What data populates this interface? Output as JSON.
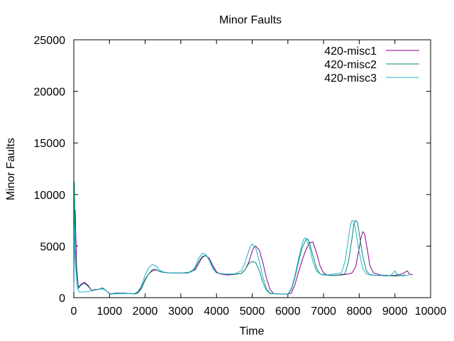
{
  "chart_data": {
    "type": "line",
    "title": "Minor Faults",
    "xlabel": "Time",
    "ylabel": "Minor Faults",
    "xlim": [
      0,
      10000
    ],
    "ylim": [
      0,
      25000
    ],
    "xticks": [
      0,
      1000,
      2000,
      3000,
      4000,
      5000,
      6000,
      7000,
      8000,
      9000,
      10000
    ],
    "yticks": [
      0,
      5000,
      10000,
      15000,
      20000,
      25000
    ],
    "grid": false,
    "legend_position": "top-right",
    "series": [
      {
        "name": "420-misc1",
        "color": "#8b008b",
        "points": [
          [
            0,
            800
          ],
          [
            40,
            8500
          ],
          [
            80,
            3000
          ],
          [
            130,
            1000
          ],
          [
            200,
            1300
          ],
          [
            300,
            1500
          ],
          [
            400,
            1200
          ],
          [
            500,
            700
          ],
          [
            600,
            800
          ],
          [
            700,
            800
          ],
          [
            800,
            950
          ],
          [
            900,
            700
          ],
          [
            1000,
            400
          ],
          [
            1100,
            400
          ],
          [
            1200,
            450
          ],
          [
            1400,
            450
          ],
          [
            1600,
            400
          ],
          [
            1700,
            350
          ],
          [
            1800,
            500
          ],
          [
            1900,
            1000
          ],
          [
            2000,
            1800
          ],
          [
            2100,
            2300
          ],
          [
            2200,
            2600
          ],
          [
            2300,
            2700
          ],
          [
            2400,
            2550
          ],
          [
            2500,
            2450
          ],
          [
            2700,
            2400
          ],
          [
            3000,
            2400
          ],
          [
            3200,
            2400
          ],
          [
            3400,
            2700
          ],
          [
            3500,
            3300
          ],
          [
            3600,
            3900
          ],
          [
            3700,
            4100
          ],
          [
            3800,
            3800
          ],
          [
            3900,
            3100
          ],
          [
            4000,
            2500
          ],
          [
            4100,
            2300
          ],
          [
            4300,
            2200
          ],
          [
            4500,
            2250
          ],
          [
            4700,
            2350
          ],
          [
            4800,
            2700
          ],
          [
            4900,
            3400
          ],
          [
            5000,
            4500
          ],
          [
            5050,
            4900
          ],
          [
            5100,
            5000
          ],
          [
            5200,
            4600
          ],
          [
            5300,
            3400
          ],
          [
            5400,
            1900
          ],
          [
            5500,
            800
          ],
          [
            5600,
            400
          ],
          [
            5800,
            350
          ],
          [
            6000,
            350
          ],
          [
            6100,
            450
          ],
          [
            6200,
            1300
          ],
          [
            6300,
            2500
          ],
          [
            6400,
            3600
          ],
          [
            6500,
            4600
          ],
          [
            6600,
            5300
          ],
          [
            6700,
            5400
          ],
          [
            6800,
            4400
          ],
          [
            6900,
            3100
          ],
          [
            7000,
            2400
          ],
          [
            7100,
            2200
          ],
          [
            7300,
            2150
          ],
          [
            7500,
            2200
          ],
          [
            7700,
            2300
          ],
          [
            7800,
            2400
          ],
          [
            7900,
            3000
          ],
          [
            8000,
            4800
          ],
          [
            8050,
            5800
          ],
          [
            8100,
            6400
          ],
          [
            8150,
            6200
          ],
          [
            8200,
            5200
          ],
          [
            8300,
            3100
          ],
          [
            8400,
            2400
          ],
          [
            8600,
            2200
          ],
          [
            8800,
            2150
          ],
          [
            9000,
            2150
          ],
          [
            9200,
            2300
          ],
          [
            9300,
            2500
          ],
          [
            9350,
            2600
          ],
          [
            9400,
            2300
          ],
          [
            9500,
            2200
          ]
        ]
      },
      {
        "name": "420-misc2",
        "color": "#008b6e",
        "points": [
          [
            0,
            1200
          ],
          [
            15,
            11200
          ],
          [
            40,
            5000
          ],
          [
            80,
            2500
          ],
          [
            130,
            900
          ],
          [
            200,
            1200
          ],
          [
            300,
            1400
          ],
          [
            400,
            1100
          ],
          [
            500,
            700
          ],
          [
            600,
            750
          ],
          [
            700,
            800
          ],
          [
            800,
            950
          ],
          [
            900,
            700
          ],
          [
            1000,
            350
          ],
          [
            1100,
            400
          ],
          [
            1300,
            450
          ],
          [
            1600,
            400
          ],
          [
            1700,
            350
          ],
          [
            1800,
            450
          ],
          [
            1900,
            900
          ],
          [
            2000,
            1700
          ],
          [
            2100,
            2300
          ],
          [
            2200,
            2700
          ],
          [
            2300,
            2750
          ],
          [
            2400,
            2550
          ],
          [
            2500,
            2450
          ],
          [
            2700,
            2400
          ],
          [
            3000,
            2400
          ],
          [
            3200,
            2400
          ],
          [
            3400,
            2800
          ],
          [
            3500,
            3500
          ],
          [
            3600,
            4000
          ],
          [
            3700,
            4100
          ],
          [
            3800,
            3700
          ],
          [
            3900,
            2900
          ],
          [
            4000,
            2400
          ],
          [
            4200,
            2300
          ],
          [
            4500,
            2250
          ],
          [
            4700,
            2350
          ],
          [
            4800,
            2700
          ],
          [
            4900,
            3300
          ],
          [
            5000,
            3500
          ],
          [
            5100,
            3400
          ],
          [
            5200,
            2600
          ],
          [
            5300,
            1500
          ],
          [
            5400,
            700
          ],
          [
            5500,
            400
          ],
          [
            5700,
            350
          ],
          [
            6000,
            350
          ],
          [
            6100,
            800
          ],
          [
            6200,
            2000
          ],
          [
            6300,
            3500
          ],
          [
            6400,
            4800
          ],
          [
            6500,
            5600
          ],
          [
            6550,
            5700
          ],
          [
            6600,
            5400
          ],
          [
            6700,
            4100
          ],
          [
            6800,
            2900
          ],
          [
            6900,
            2300
          ],
          [
            7000,
            2200
          ],
          [
            7200,
            2150
          ],
          [
            7400,
            2200
          ],
          [
            7600,
            2300
          ],
          [
            7700,
            3500
          ],
          [
            7800,
            5800
          ],
          [
            7850,
            7200
          ],
          [
            7900,
            7500
          ],
          [
            7950,
            7300
          ],
          [
            8000,
            6200
          ],
          [
            8100,
            4000
          ],
          [
            8200,
            2600
          ],
          [
            8300,
            2200
          ],
          [
            8500,
            2150
          ],
          [
            8700,
            2150
          ],
          [
            9000,
            2100
          ],
          [
            9200,
            2150
          ],
          [
            9300,
            2200
          ]
        ]
      },
      {
        "name": "420-misc3",
        "color": "#20b2c8",
        "points": [
          [
            0,
            600
          ],
          [
            25,
            7000
          ],
          [
            50,
            3000
          ],
          [
            100,
            1000
          ],
          [
            150,
            550
          ],
          [
            300,
            550
          ],
          [
            400,
            600
          ],
          [
            500,
            650
          ],
          [
            600,
            750
          ],
          [
            700,
            800
          ],
          [
            800,
            850
          ],
          [
            900,
            700
          ],
          [
            1000,
            350
          ],
          [
            1100,
            350
          ],
          [
            1300,
            400
          ],
          [
            1600,
            400
          ],
          [
            1700,
            400
          ],
          [
            1800,
            600
          ],
          [
            1900,
            1200
          ],
          [
            2000,
            2200
          ],
          [
            2100,
            2900
          ],
          [
            2200,
            3200
          ],
          [
            2300,
            3100
          ],
          [
            2400,
            2700
          ],
          [
            2500,
            2500
          ],
          [
            2700,
            2400
          ],
          [
            3000,
            2400
          ],
          [
            3300,
            2500
          ],
          [
            3400,
            3000
          ],
          [
            3500,
            3800
          ],
          [
            3600,
            4300
          ],
          [
            3700,
            4200
          ],
          [
            3800,
            3600
          ],
          [
            3900,
            2800
          ],
          [
            4000,
            2400
          ],
          [
            4200,
            2300
          ],
          [
            4500,
            2300
          ],
          [
            4700,
            2600
          ],
          [
            4800,
            3400
          ],
          [
            4900,
            4500
          ],
          [
            4950,
            5000
          ],
          [
            5000,
            5200
          ],
          [
            5100,
            4800
          ],
          [
            5200,
            3500
          ],
          [
            5300,
            2000
          ],
          [
            5400,
            900
          ],
          [
            5500,
            450
          ],
          [
            5700,
            350
          ],
          [
            6000,
            350
          ],
          [
            6100,
            900
          ],
          [
            6200,
            2200
          ],
          [
            6300,
            3800
          ],
          [
            6400,
            5200
          ],
          [
            6450,
            5700
          ],
          [
            6500,
            5800
          ],
          [
            6600,
            5000
          ],
          [
            6700,
            3500
          ],
          [
            6800,
            2600
          ],
          [
            6900,
            2300
          ],
          [
            7100,
            2200
          ],
          [
            7300,
            2300
          ],
          [
            7500,
            2400
          ],
          [
            7600,
            3500
          ],
          [
            7700,
            5800
          ],
          [
            7750,
            7000
          ],
          [
            7800,
            7500
          ],
          [
            7850,
            7400
          ],
          [
            7900,
            6500
          ],
          [
            8000,
            4400
          ],
          [
            8100,
            2800
          ],
          [
            8200,
            2300
          ],
          [
            8400,
            2200
          ],
          [
            8800,
            2100
          ],
          [
            8900,
            2200
          ],
          [
            9000,
            2600
          ],
          [
            9050,
            2300
          ],
          [
            9200,
            2100
          ],
          [
            9400,
            2200
          ]
        ]
      }
    ]
  }
}
